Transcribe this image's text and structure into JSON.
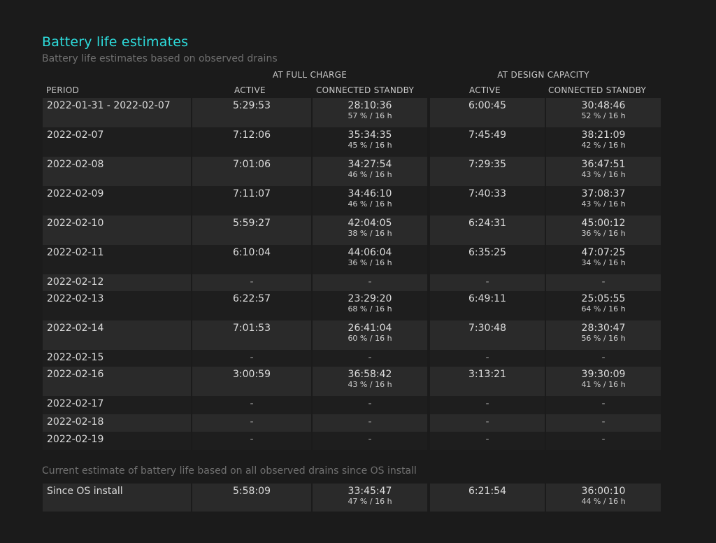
{
  "title": "Battery life estimates",
  "subtitle": "Battery life estimates based on observed drains",
  "group_headers": {
    "full_charge": "AT FULL CHARGE",
    "design_capacity": "AT DESIGN CAPACITY"
  },
  "columns": {
    "period": "PERIOD",
    "active_1": "ACTIVE",
    "standby_1": "CONNECTED STANDBY",
    "active_2": "ACTIVE",
    "standby_2": "CONNECTED STANDBY"
  },
  "rows": [
    {
      "period": "2022-01-31 - 2022-02-07",
      "active_1": "5:29:53",
      "standby_1": "28:10:36",
      "standby_1_sub": "57 % / 16 h",
      "active_2": "6:00:45",
      "standby_2": "30:48:46",
      "standby_2_sub": "52 % / 16 h"
    },
    {
      "period": "2022-02-07",
      "active_1": "7:12:06",
      "standby_1": "35:34:35",
      "standby_1_sub": "45 % / 16 h",
      "active_2": "7:45:49",
      "standby_2": "38:21:09",
      "standby_2_sub": "42 % / 16 h"
    },
    {
      "period": "2022-02-08",
      "active_1": "7:01:06",
      "standby_1": "34:27:54",
      "standby_1_sub": "46 % / 16 h",
      "active_2": "7:29:35",
      "standby_2": "36:47:51",
      "standby_2_sub": "43 % / 16 h"
    },
    {
      "period": "2022-02-09",
      "active_1": "7:11:07",
      "standby_1": "34:46:10",
      "standby_1_sub": "46 % / 16 h",
      "active_2": "7:40:33",
      "standby_2": "37:08:37",
      "standby_2_sub": "43 % / 16 h"
    },
    {
      "period": "2022-02-10",
      "active_1": "5:59:27",
      "standby_1": "42:04:05",
      "standby_1_sub": "38 % / 16 h",
      "active_2": "6:24:31",
      "standby_2": "45:00:12",
      "standby_2_sub": "36 % / 16 h"
    },
    {
      "period": "2022-02-11",
      "active_1": "6:10:04",
      "standby_1": "44:06:04",
      "standby_1_sub": "36 % / 16 h",
      "active_2": "6:35:25",
      "standby_2": "47:07:25",
      "standby_2_sub": "34 % / 16 h"
    },
    {
      "period": "2022-02-12",
      "active_1": "-",
      "standby_1": "-",
      "standby_1_sub": "",
      "active_2": "-",
      "standby_2": "-",
      "standby_2_sub": ""
    },
    {
      "period": "2022-02-13",
      "active_1": "6:22:57",
      "standby_1": "23:29:20",
      "standby_1_sub": "68 % / 16 h",
      "active_2": "6:49:11",
      "standby_2": "25:05:55",
      "standby_2_sub": "64 % / 16 h"
    },
    {
      "period": "2022-02-14",
      "active_1": "7:01:53",
      "standby_1": "26:41:04",
      "standby_1_sub": "60 % / 16 h",
      "active_2": "7:30:48",
      "standby_2": "28:30:47",
      "standby_2_sub": "56 % / 16 h"
    },
    {
      "period": "2022-02-15",
      "active_1": "-",
      "standby_1": "-",
      "standby_1_sub": "",
      "active_2": "-",
      "standby_2": "-",
      "standby_2_sub": ""
    },
    {
      "period": "2022-02-16",
      "active_1": "3:00:59",
      "standby_1": "36:58:42",
      "standby_1_sub": "43 % / 16 h",
      "active_2": "3:13:21",
      "standby_2": "39:30:09",
      "standby_2_sub": "41 % / 16 h"
    },
    {
      "period": "2022-02-17",
      "active_1": "-",
      "standby_1": "-",
      "standby_1_sub": "",
      "active_2": "-",
      "standby_2": "-",
      "standby_2_sub": ""
    },
    {
      "period": "2022-02-18",
      "active_1": "-",
      "standby_1": "-",
      "standby_1_sub": "",
      "active_2": "-",
      "standby_2": "-",
      "standby_2_sub": ""
    },
    {
      "period": "2022-02-19",
      "active_1": "-",
      "standby_1": "-",
      "standby_1_sub": "",
      "active_2": "-",
      "standby_2": "-",
      "standby_2_sub": ""
    }
  ],
  "current_estimate_note": "Current estimate of battery life based on all observed drains since OS install",
  "since_install": {
    "period": "Since OS install",
    "active_1": "5:58:09",
    "standby_1": "33:45:47",
    "standby_1_sub": "47 % / 16 h",
    "active_2": "6:21:54",
    "standby_2": "36:00:10",
    "standby_2_sub": "44 % / 16 h"
  }
}
